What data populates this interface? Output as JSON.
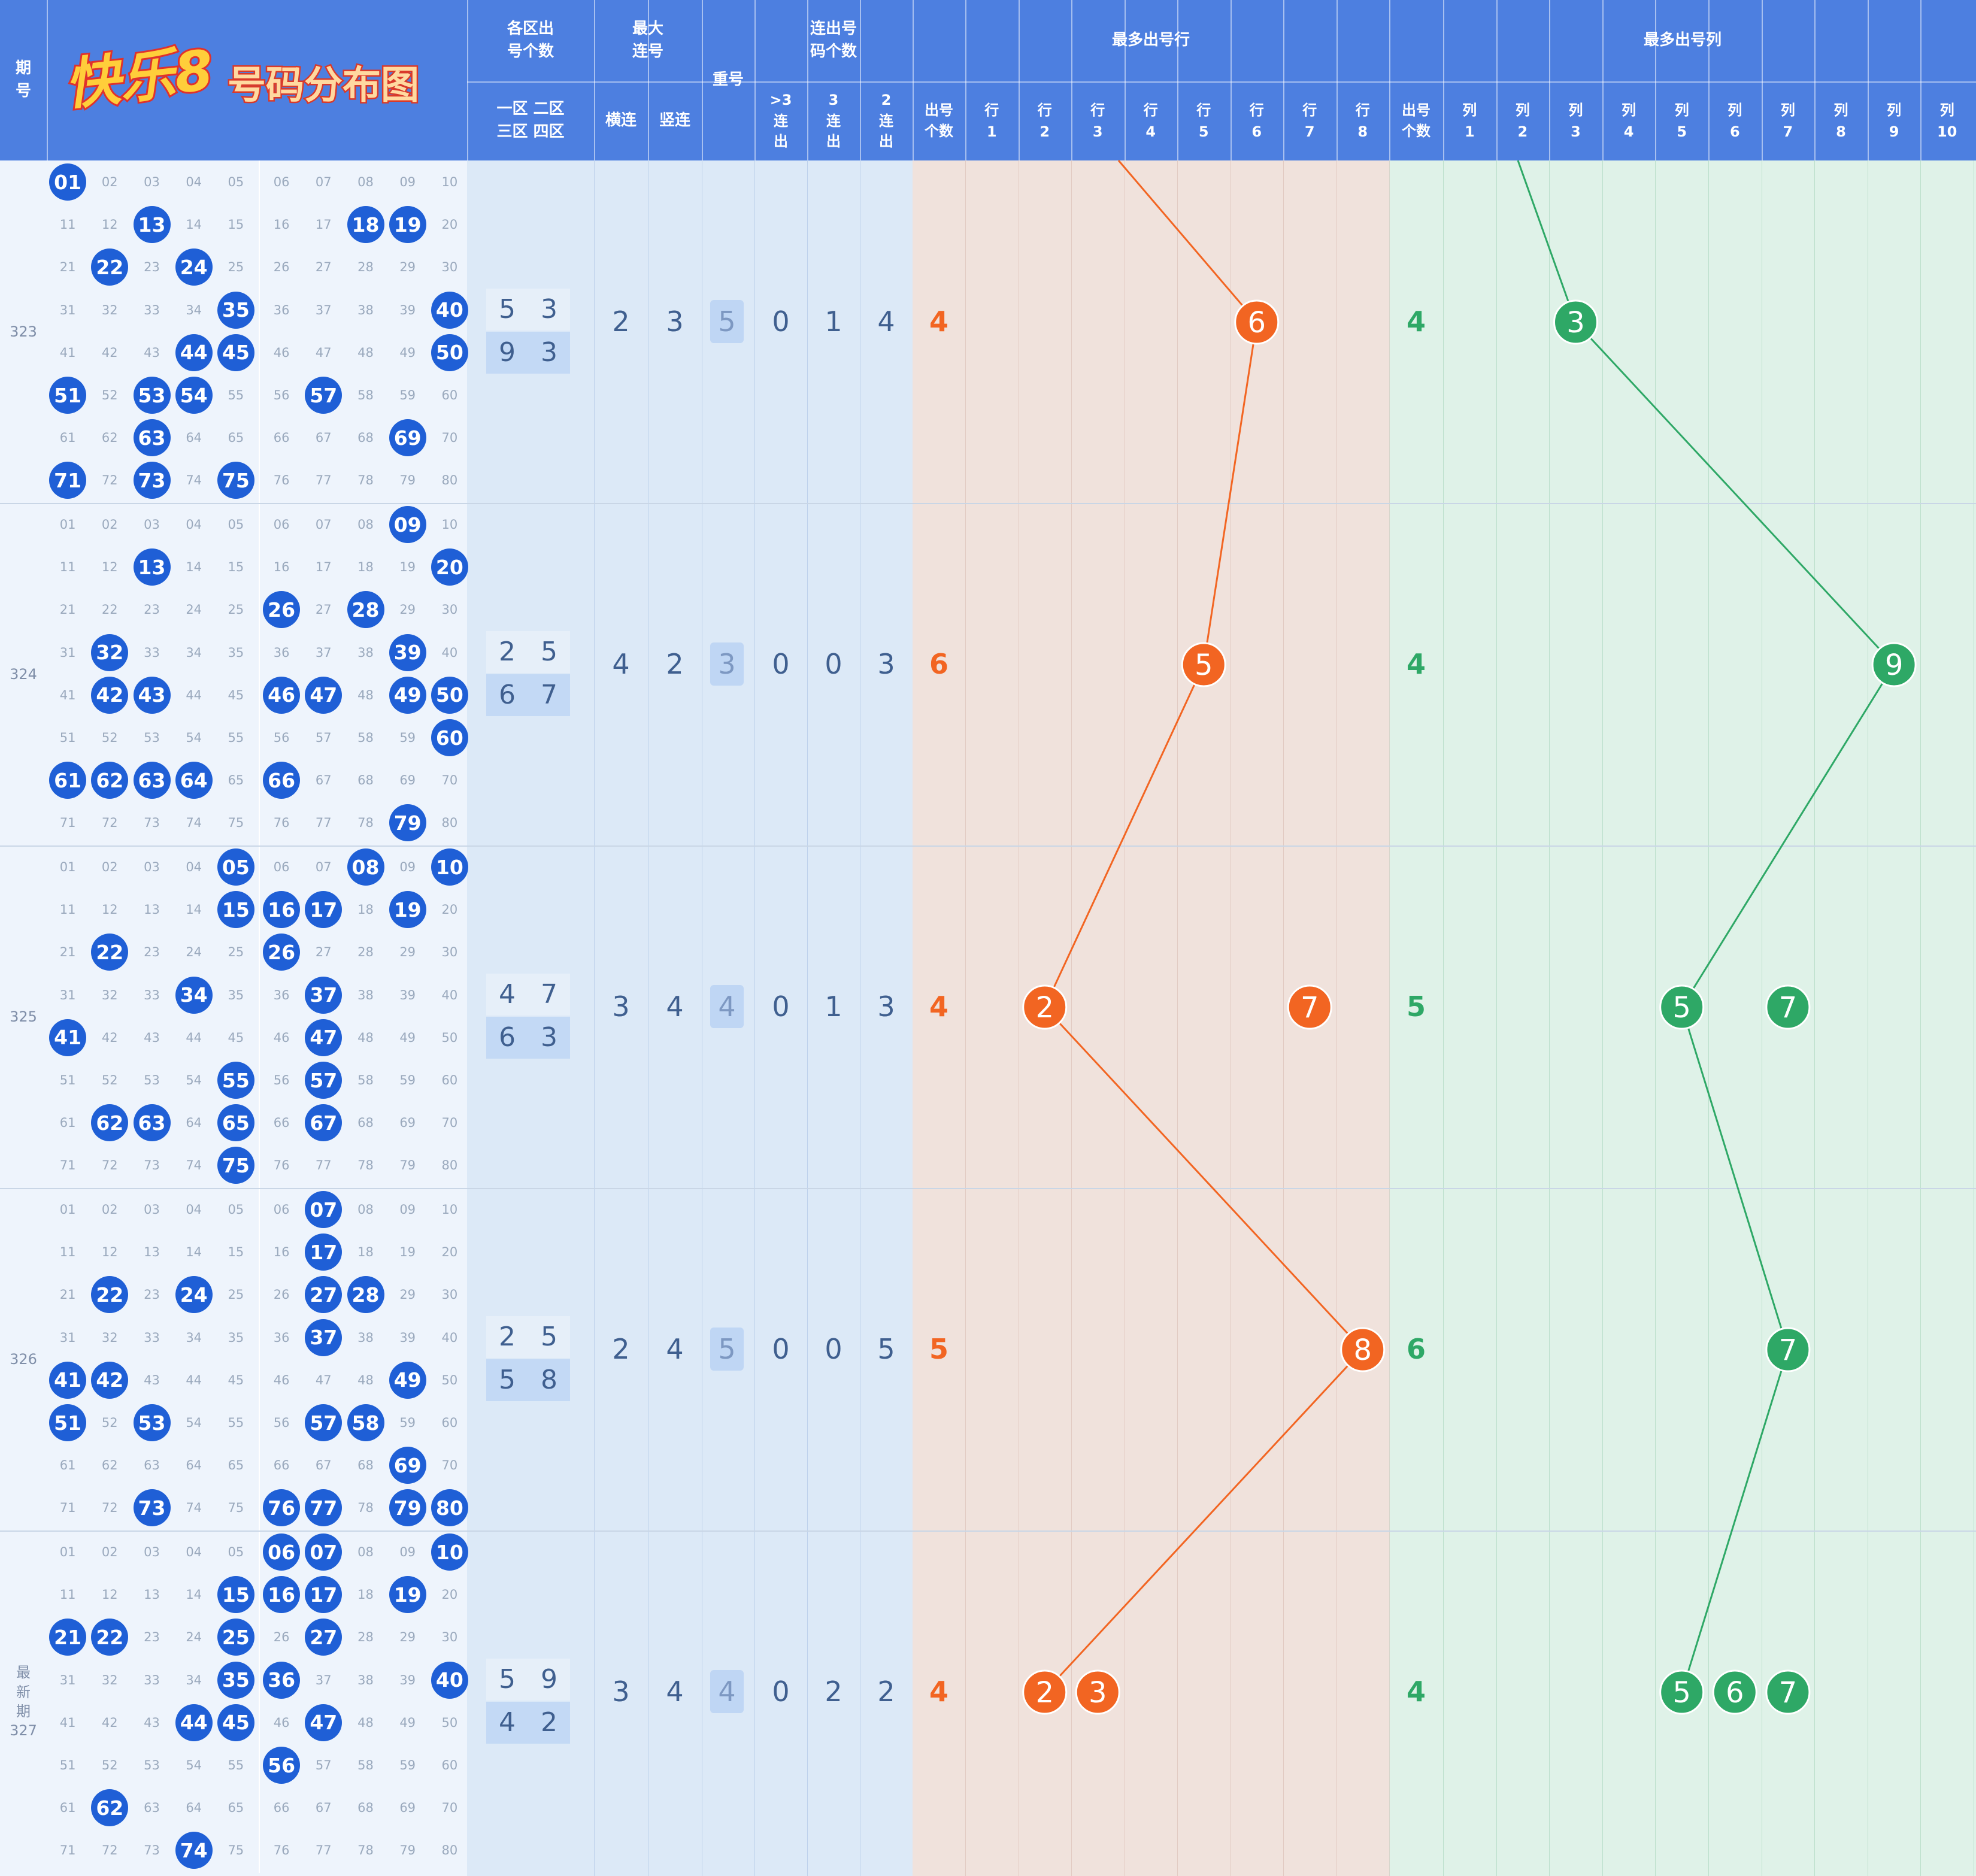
{
  "header": {
    "period_label": "期\n号",
    "logo_text": "快乐8",
    "title": "号码分布图",
    "zone_count_label": "各区出\n号个数",
    "zone_names": "一区 二区\n三区 四区",
    "max_consec_label": "最大\n连号",
    "horizontal_label": "横连",
    "vertical_label": "竖连",
    "repeat_label": "重号",
    "consec_count_label": "连出号\n码个数",
    "consec_sub": [
      ">3\n连\n出",
      "3\n连\n出",
      "2\n连\n出"
    ],
    "most_row_label": "最多出号行",
    "most_col_label": "最多出号列",
    "count_label": "出号\n个数",
    "row_labels": [
      "行\n1",
      "行\n2",
      "行\n3",
      "行\n4",
      "行\n5",
      "行\n6",
      "行\n7",
      "行\n8"
    ],
    "col_labels": [
      "列\n1",
      "列\n2",
      "列\n3",
      "列\n4",
      "列\n5",
      "列\n6",
      "列\n7",
      "列\n8",
      "列\n9",
      "列\n10"
    ]
  },
  "colors": {
    "header": "#4d7fe0",
    "ball": "#1f5fd6",
    "row_line": "#f26522",
    "col_line": "#2ea866",
    "light_blue": "#dce9f7",
    "peach": "#f0e2dc",
    "mint": "#dff2e8"
  },
  "chart_data": {
    "type": "table",
    "periods": [
      {
        "label": "323",
        "drawn": [
          1,
          13,
          18,
          19,
          22,
          24,
          35,
          40,
          44,
          45,
          50,
          51,
          53,
          54,
          57,
          63,
          69,
          71,
          73,
          75
        ],
        "zones": [
          5,
          3,
          9,
          3
        ],
        "horizontal": 2,
        "vertical": 3,
        "repeat": 5,
        "gt3": 0,
        "c3": 1,
        "c2": 4,
        "row_count": 4,
        "max_rows": [
          6
        ],
        "col_count": 4,
        "max_cols": [
          3
        ]
      },
      {
        "label": "324",
        "drawn": [
          9,
          13,
          20,
          26,
          28,
          32,
          39,
          42,
          43,
          46,
          47,
          49,
          50,
          60,
          61,
          62,
          63,
          64,
          66,
          79
        ],
        "zones": [
          2,
          5,
          6,
          7
        ],
        "horizontal": 4,
        "vertical": 2,
        "repeat": 3,
        "gt3": 0,
        "c3": 0,
        "c2": 3,
        "row_count": 6,
        "max_rows": [
          5
        ],
        "col_count": 4,
        "max_cols": [
          9
        ]
      },
      {
        "label": "325",
        "drawn": [
          5,
          8,
          10,
          15,
          16,
          17,
          19,
          22,
          26,
          34,
          37,
          41,
          47,
          55,
          57,
          62,
          63,
          65,
          67,
          75
        ],
        "zones": [
          4,
          7,
          6,
          3
        ],
        "horizontal": 3,
        "vertical": 4,
        "repeat": 4,
        "gt3": 0,
        "c3": 1,
        "c2": 3,
        "row_count": 4,
        "max_rows": [
          2,
          7
        ],
        "col_count": 5,
        "max_cols": [
          5,
          7
        ]
      },
      {
        "label": "326",
        "drawn": [
          7,
          17,
          22,
          24,
          27,
          28,
          37,
          41,
          42,
          49,
          51,
          53,
          57,
          58,
          69,
          73,
          76,
          77,
          79,
          80
        ],
        "zones": [
          2,
          5,
          5,
          8
        ],
        "horizontal": 2,
        "vertical": 4,
        "repeat": 5,
        "gt3": 0,
        "c3": 0,
        "c2": 5,
        "row_count": 5,
        "max_rows": [
          8
        ],
        "col_count": 6,
        "max_cols": [
          7
        ]
      },
      {
        "label": "最\n新\n期\n327",
        "drawn": [
          6,
          7,
          10,
          15,
          16,
          17,
          19,
          21,
          22,
          25,
          27,
          35,
          36,
          40,
          44,
          45,
          47,
          56,
          62,
          74
        ],
        "zones": [
          5,
          9,
          4,
          2
        ],
        "horizontal": 3,
        "vertical": 4,
        "repeat": 4,
        "gt3": 0,
        "c3": 2,
        "c2": 2,
        "row_count": 4,
        "max_rows": [
          2,
          3
        ],
        "col_count": 4,
        "max_cols": [
          5,
          6,
          7
        ]
      }
    ],
    "row_trend": [
      6,
      5,
      2,
      8,
      2
    ],
    "col_trend": [
      3,
      9,
      5,
      7,
      5
    ]
  }
}
